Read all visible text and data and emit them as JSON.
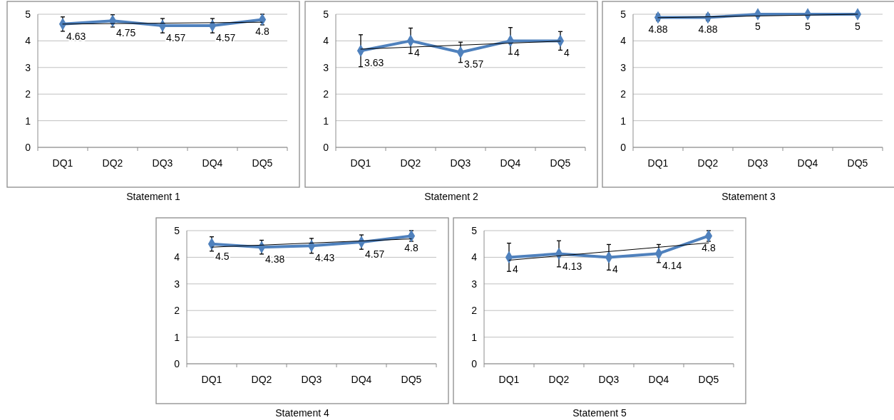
{
  "chart_data": [
    {
      "type": "line",
      "title": "Statement 1",
      "categories": [
        "DQ1",
        "DQ2",
        "DQ3",
        "DQ4",
        "DQ5"
      ],
      "ylim": [
        0,
        5
      ],
      "yticks": [
        0,
        1,
        2,
        3,
        4,
        5
      ],
      "grid": "y",
      "marker": "diamond",
      "series": [
        {
          "color": "#4f81bd",
          "values": [
            4.63,
            4.75,
            4.57,
            4.57,
            4.8
          ],
          "errors": [
            0.27,
            0.23,
            0.27,
            0.27,
            0.2
          ],
          "value_labels": [
            "4.63",
            "4.75",
            "4.57",
            "4.57",
            "4.8"
          ]
        },
        {
          "type": "line",
          "x": [
            "DQ1",
            "DQ5"
          ],
          "values": [
            4.63,
            4.7
          ],
          "color": "#000000",
          "marker": "none"
        }
      ]
    },
    {
      "type": "line",
      "title": "Statement 2",
      "categories": [
        "DQ1",
        "DQ2",
        "DQ3",
        "DQ4",
        "DQ5"
      ],
      "ylim": [
        0,
        5
      ],
      "yticks": [
        0,
        1,
        2,
        3,
        4,
        5
      ],
      "grid": "y",
      "marker": "diamond",
      "series": [
        {
          "color": "#4f81bd",
          "values": [
            3.63,
            4,
            3.57,
            4,
            4
          ],
          "errors": [
            0.6,
            0.48,
            0.38,
            0.5,
            0.35
          ],
          "value_labels": [
            "3.63",
            "4",
            "3.57",
            "4",
            "4"
          ]
        },
        {
          "type": "line",
          "x": [
            "DQ1",
            "DQ5"
          ],
          "values": [
            3.69,
            3.99
          ],
          "color": "#000000",
          "marker": "none"
        }
      ]
    },
    {
      "type": "line",
      "title": "Statement 3",
      "categories": [
        "DQ1",
        "DQ2",
        "DQ3",
        "DQ4",
        "DQ5"
      ],
      "ylim": [
        0,
        5
      ],
      "yticks": [
        0,
        1,
        2,
        3,
        4,
        5
      ],
      "grid": "y",
      "marker": "diamond",
      "series": [
        {
          "color": "#4f81bd",
          "values": [
            4.88,
            4.88,
            5,
            5,
            5
          ],
          "errors": [
            0.12,
            0.12,
            null,
            null,
            null
          ],
          "value_labels": [
            "4.88",
            "4.88",
            "5",
            "5",
            "5"
          ]
        },
        {
          "type": "line",
          "x": [
            "DQ1",
            "DQ5"
          ],
          "values": [
            4.87,
            5
          ],
          "color": "#000000",
          "marker": "none"
        }
      ]
    },
    {
      "type": "line",
      "title": "Statement 4",
      "categories": [
        "DQ1",
        "DQ2",
        "DQ3",
        "DQ4",
        "DQ5"
      ],
      "ylim": [
        0,
        5
      ],
      "yticks": [
        0,
        1,
        2,
        3,
        4,
        5
      ],
      "grid": "y",
      "marker": "diamond",
      "series": [
        {
          "color": "#4f81bd",
          "values": [
            4.5,
            4.38,
            4.43,
            4.57,
            4.8
          ],
          "errors": [
            0.27,
            0.26,
            0.28,
            0.27,
            0.2
          ],
          "value_labels": [
            "4.5",
            "4.38",
            "4.43",
            "4.57",
            "4.8"
          ]
        },
        {
          "type": "line",
          "x": [
            "DQ1",
            "DQ5"
          ],
          "values": [
            4.38,
            4.69
          ],
          "color": "#000000",
          "marker": "none"
        }
      ]
    },
    {
      "type": "line",
      "title": "Statement 5",
      "categories": [
        "DQ1",
        "DQ2",
        "DQ3",
        "DQ4",
        "DQ5"
      ],
      "ylim": [
        0,
        5
      ],
      "yticks": [
        0,
        1,
        2,
        3,
        4,
        5
      ],
      "grid": "y",
      "marker": "diamond",
      "series": [
        {
          "color": "#4f81bd",
          "values": [
            4,
            4.13,
            4,
            4.14,
            4.8
          ],
          "errors": [
            0.53,
            0.49,
            0.48,
            0.34,
            0.2
          ],
          "value_labels": [
            "4",
            "4.13",
            "4",
            "4.14",
            "4.8"
          ]
        },
        {
          "type": "line",
          "x": [
            "DQ1",
            "DQ5"
          ],
          "values": [
            3.89,
            4.54
          ],
          "color": "#000000",
          "marker": "none"
        }
      ]
    }
  ]
}
